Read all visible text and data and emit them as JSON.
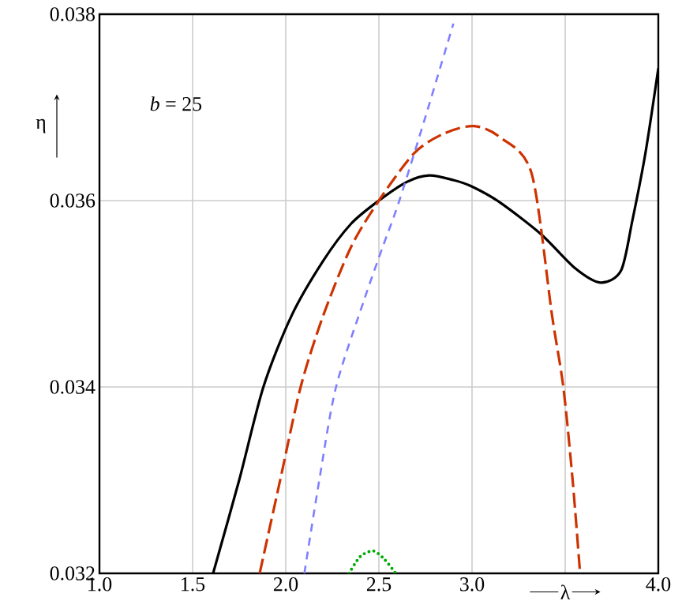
{
  "chart_data": {
    "type": "line",
    "xlabel": "λ",
    "ylabel": "η",
    "annotations": [
      "*b* = 25"
    ],
    "xlim": [
      1.0,
      4.0
    ],
    "ylim": [
      0.032,
      0.038
    ],
    "xticks": [
      {
        "value": 1.0,
        "label": "1.0"
      },
      {
        "value": 1.5,
        "label": "1.5"
      },
      {
        "value": 2.0,
        "label": "2.0"
      },
      {
        "value": 2.5,
        "label": "2.5"
      },
      {
        "value": 3.0,
        "label": "3.0"
      },
      {
        "value": 3.5,
        "label": null
      },
      {
        "value": 4.0,
        "label": "4.0"
      }
    ],
    "yticks": [
      0.032,
      0.034,
      0.036,
      0.038
    ],
    "grid": true,
    "series": [
      {
        "color": "#000000",
        "line_style": "solid",
        "x": [
          1.61,
          1.75,
          1.88,
          2.03,
          2.2,
          2.35,
          2.5,
          2.65,
          2.77,
          2.9,
          3.0,
          3.15,
          3.37,
          3.55,
          3.69,
          3.8,
          3.86,
          3.93,
          4.0
        ],
        "values": [
          0.032,
          0.033,
          0.034,
          0.03476,
          0.03535,
          0.03575,
          0.036,
          0.0362,
          0.03627,
          0.03622,
          0.03615,
          0.03598,
          0.03564,
          0.03528,
          0.03512,
          0.03525,
          0.03578,
          0.0365,
          0.03742
        ]
      },
      {
        "color": "#cc3300",
        "line_style": "dashed",
        "x": [
          1.86,
          1.97,
          2.08,
          2.2,
          2.35,
          2.5,
          2.69,
          2.85,
          3.01,
          3.15,
          3.32,
          3.43,
          3.49,
          3.54,
          3.58
        ],
        "values": [
          0.032,
          0.033,
          0.034,
          0.03476,
          0.0355,
          0.036,
          0.03651,
          0.03672,
          0.0368,
          0.03668,
          0.03629,
          0.03476,
          0.034,
          0.033,
          0.032
        ]
      },
      {
        "color": "#7f7fff",
        "line_style": "dashed",
        "x": [
          2.1,
          2.18,
          2.27,
          2.42,
          2.52,
          2.61,
          2.75,
          2.9
        ],
        "values": [
          0.032,
          0.033,
          0.034,
          0.03493,
          0.0355,
          0.036,
          0.0369,
          0.0379
        ]
      },
      {
        "color": "#00aa00",
        "line_style": "dotted",
        "x": [
          2.34,
          2.4,
          2.47,
          2.53,
          2.59
        ],
        "values": [
          0.032,
          0.03218,
          0.03224,
          0.03215,
          0.032
        ]
      }
    ]
  }
}
